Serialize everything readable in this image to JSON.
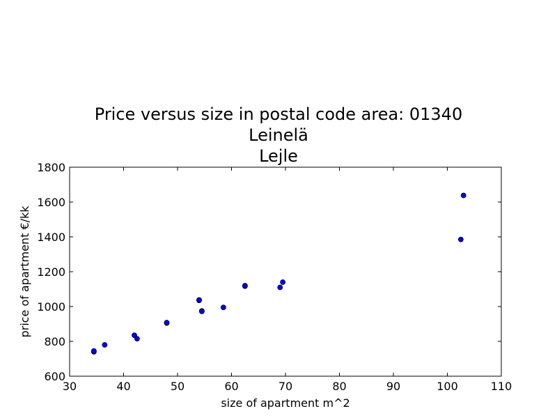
{
  "chart_data": {
    "type": "scatter",
    "title_lines": [
      "Price versus size in postal code area: 01340",
      "Leinelä",
      "Lejle"
    ],
    "xlabel": "size of apartment m^2",
    "ylabel": "price of apartment €/kk",
    "xlim": [
      30,
      110
    ],
    "ylim": [
      600,
      1800
    ],
    "xticks": [
      30,
      40,
      50,
      60,
      70,
      80,
      90,
      100,
      110
    ],
    "yticks": [
      600,
      800,
      1000,
      1200,
      1400,
      1600,
      1800
    ],
    "grid": false,
    "marker_color": "#0000ff",
    "points": [
      {
        "x": 34.5,
        "y": 740
      },
      {
        "x": 34.5,
        "y": 745
      },
      {
        "x": 36.5,
        "y": 780
      },
      {
        "x": 42.0,
        "y": 835
      },
      {
        "x": 42.5,
        "y": 815
      },
      {
        "x": 48.0,
        "y": 905
      },
      {
        "x": 48.0,
        "y": 908
      },
      {
        "x": 54.0,
        "y": 1035
      },
      {
        "x": 54.0,
        "y": 1038
      },
      {
        "x": 54.5,
        "y": 975
      },
      {
        "x": 54.5,
        "y": 972
      },
      {
        "x": 58.5,
        "y": 995
      },
      {
        "x": 62.5,
        "y": 1117
      },
      {
        "x": 62.5,
        "y": 1120
      },
      {
        "x": 69.0,
        "y": 1110
      },
      {
        "x": 69.5,
        "y": 1140
      },
      {
        "x": 102.5,
        "y": 1385
      },
      {
        "x": 103.0,
        "y": 1638
      }
    ]
  }
}
